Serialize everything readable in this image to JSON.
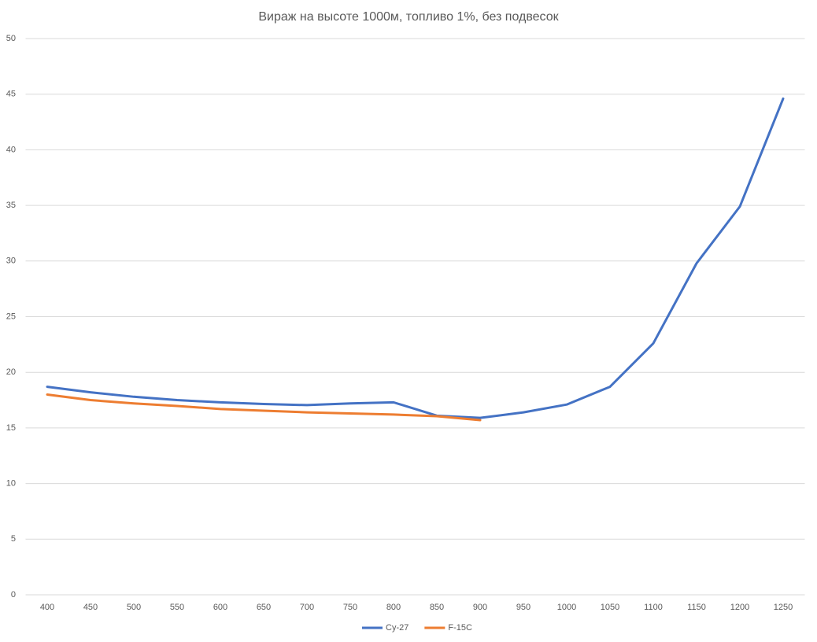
{
  "chart_data": {
    "type": "line",
    "title": "Вираж на высоте 1000м, топливо 1%, без подвесок",
    "categories": [
      "400",
      "450",
      "500",
      "550",
      "600",
      "650",
      "700",
      "750",
      "800",
      "850",
      "900",
      "950",
      "1000",
      "1050",
      "1100",
      "1150",
      "1200",
      "1250"
    ],
    "series": [
      {
        "name": "Су-27",
        "color": "#4472c4",
        "values": [
          18.7,
          18.2,
          17.8,
          17.5,
          17.3,
          17.15,
          17.05,
          17.2,
          17.3,
          16.1,
          15.9,
          16.4,
          17.1,
          18.7,
          22.6,
          29.8,
          34.9,
          44.6
        ]
      },
      {
        "name": "F-15C",
        "color": "#ed7d31",
        "values": [
          18.0,
          17.5,
          17.2,
          16.97,
          16.7,
          16.55,
          16.4,
          16.3,
          16.2,
          16.05,
          15.7,
          null,
          null,
          null,
          null,
          null,
          null,
          null
        ]
      }
    ],
    "ylim": [
      0,
      50
    ],
    "yticks": [
      0,
      5,
      10,
      15,
      20,
      25,
      30,
      35,
      40,
      45,
      50
    ],
    "grid": true,
    "legend": "bottom"
  }
}
